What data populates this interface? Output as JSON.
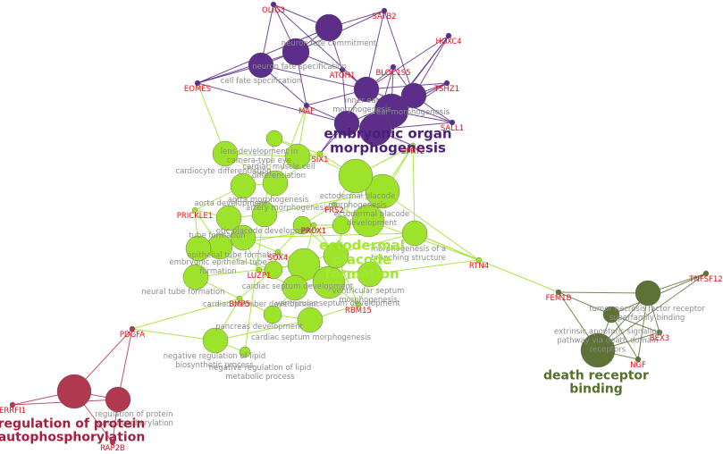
{
  "clusters": [
    {
      "label": "embryonic organ morphogenesis",
      "color": "#5c2e8a",
      "terms": [
        "neuron fate commitment",
        "neuron fate specification",
        "cell fate specification",
        "inner ear morphogenesis",
        "ear morphogenesis"
      ],
      "genes": [
        "OLIG3",
        "SATB2",
        "HOXC4",
        "EOMES",
        "ATOH1",
        "BLOC1S5",
        "TSHZ1",
        "MAF",
        "SALL1"
      ]
    },
    {
      "label": "ectodermal placode formation",
      "color": "#9de22b",
      "terms": [
        "lens development in camera-type eye",
        "cardiocyte differentiation",
        "cardiac muscle cell differentiation",
        "aorta morphogenesis",
        "aorta development",
        "artery morphogenesis",
        "ectodermal placode morphogenesis",
        "ectodermal placode development",
        "tube formation",
        "otic placode development",
        "morphogenesis of a branching structure",
        "epithelial tube formation",
        "embryonic epithelial tube formation",
        "neural tube formation",
        "cardiac septum development",
        "ventricular septum morphogenesis",
        "ventricular septum development",
        "cardiac chamber development",
        "pancreas development",
        "cardiac septum morphogenesis",
        "negative regulation of lipid biosynthetic process",
        "negative regulation of lipid metabolic process"
      ],
      "genes": [
        "SIX1",
        "SPRY2",
        "PRICKLE1",
        "FRS2",
        "PROX1",
        "SOX4",
        "RTN4",
        "LUZP1",
        "BMP5",
        "RBM15"
      ]
    },
    {
      "label": "death receptor binding",
      "color": "#5d7234",
      "terms": [
        "tumor necrosis factor receptor superfamily binding",
        "extrinsic apoptotic signaling pathway via death domain receptors"
      ],
      "genes": [
        "FEM1B",
        "TNFSF12",
        "BEX3",
        "NGF"
      ]
    },
    {
      "label": "regulation of protein autophosphorylation",
      "color": "#b0384f",
      "terms": [
        "regulation of protein autophosphorylation"
      ],
      "genes": [
        "PDGFA",
        "ERRFI1",
        "RAP2B"
      ]
    }
  ]
}
